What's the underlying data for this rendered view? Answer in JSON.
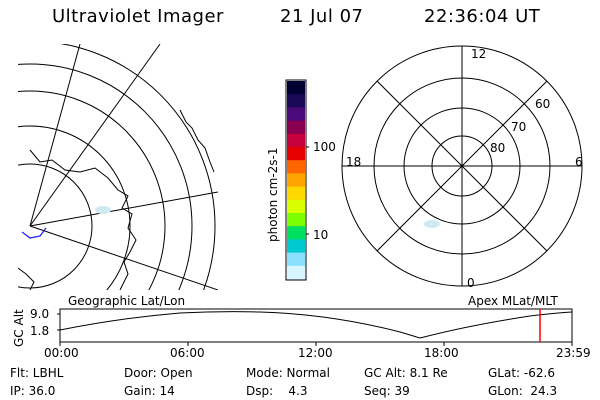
{
  "header": {
    "title": "Ultraviolet Imager",
    "date": "21 Jul 07",
    "time": "22:36:04 UT"
  },
  "left_panel": {
    "caption": "Geographic Lat/Lon"
  },
  "right_panel": {
    "caption": "Apex MLat/MLT",
    "mlt_labels": [
      "12",
      "18",
      "6",
      "0"
    ],
    "mlat_labels": [
      "60",
      "70",
      "80"
    ]
  },
  "colorbar": {
    "unit_label": "photon cm-2s-1",
    "tick_labels": [
      "100",
      "10"
    ],
    "colors": [
      "#000033",
      "#1a0a55",
      "#4b0a7a",
      "#8a0050",
      "#c8003c",
      "#e60000",
      "#ff6600",
      "#ffa500",
      "#ffd800",
      "#d8ff00",
      "#7cff00",
      "#00e060",
      "#00c8d0",
      "#8ae0ff",
      "#d8f6ff"
    ]
  },
  "timeline": {
    "y_axis_label": "GC Alt",
    "y_ticks": [
      "9.0",
      "1.8"
    ],
    "x_ticks": [
      "00:00",
      "06:00",
      "12:00",
      "18:00",
      "23:59"
    ],
    "current_marker_color": "#ff0000"
  },
  "status": {
    "flt": "Flt: LBHL",
    "door": "Door: Open",
    "mode": "Mode: Normal",
    "gc_alt": "GC Alt: 8.1 Re",
    "glat": "GLat: -62.6",
    "ip": "IP: 36.0",
    "gain": "Gain: 14",
    "dsp": "Dsp:    4.3",
    "seq": "Seq: 39",
    "glon": "GLon:  24.3"
  }
}
